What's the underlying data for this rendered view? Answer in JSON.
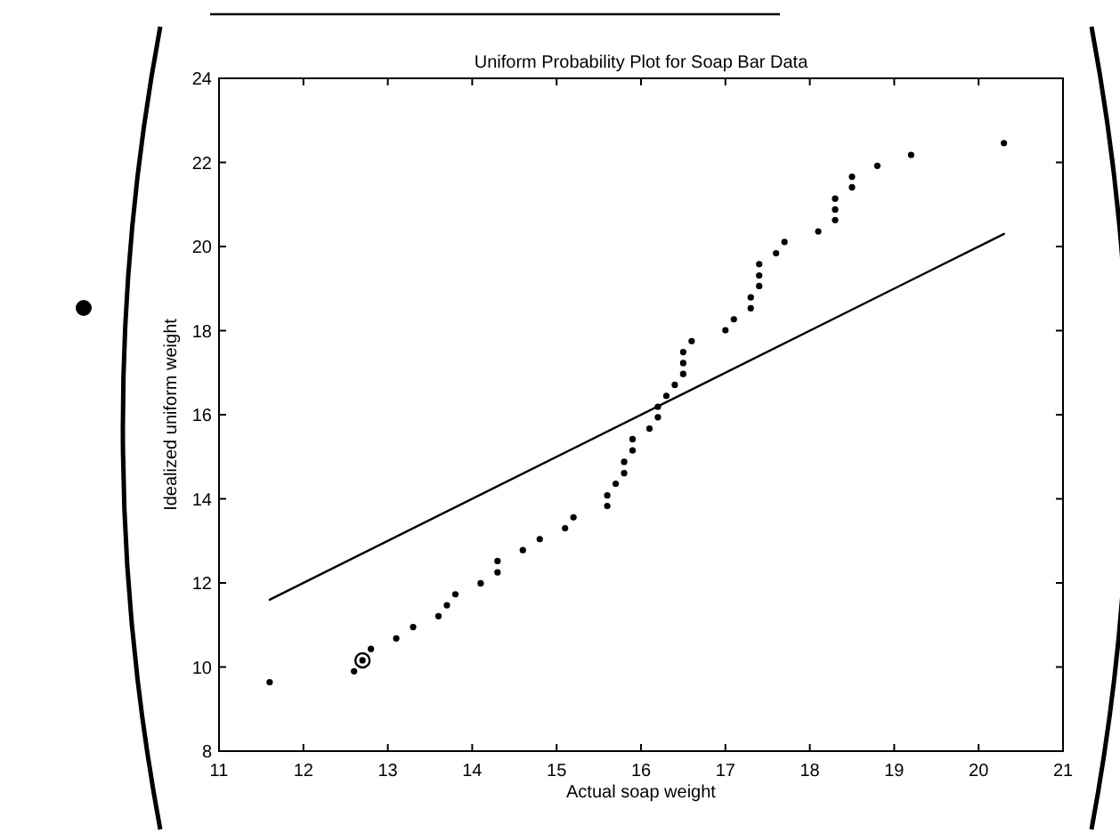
{
  "chart_data": {
    "type": "scatter",
    "title": "Uniform Probability Plot for Soap Bar Data",
    "xlabel": "Actual soap weight",
    "ylabel": "Idealized uniform weight",
    "xlim": [
      11,
      21
    ],
    "xticks": [
      11,
      12,
      13,
      14,
      15,
      16,
      17,
      18,
      19,
      20,
      21
    ],
    "ylim": [
      8,
      24
    ],
    "yticks": [
      8,
      10,
      12,
      14,
      16,
      18,
      20,
      22,
      24
    ],
    "series": [
      {
        "marker": "circle",
        "color": "#000000",
        "x": [
          11.6,
          12.6,
          12.7,
          12.8,
          13.1,
          13.3,
          13.6,
          13.7,
          13.8,
          14.1,
          14.3,
          14.3,
          14.6,
          14.8,
          15.1,
          15.2,
          15.6,
          15.6,
          15.7,
          15.8,
          15.8,
          15.9,
          15.9,
          16.1,
          16.2,
          16.2,
          16.3,
          16.4,
          16.5,
          16.5,
          16.5,
          16.6,
          17.0,
          17.1,
          17.3,
          17.3,
          17.4,
          17.4,
          17.4,
          17.6,
          17.7,
          18.1,
          18.3,
          18.3,
          18.3,
          18.5,
          18.5,
          18.8,
          19.2,
          20.3
        ],
        "values": [
          9.64,
          9.9,
          10.16,
          10.43,
          10.68,
          10.95,
          11.21,
          11.47,
          11.73,
          11.99,
          12.25,
          12.52,
          12.78,
          13.04,
          13.3,
          13.56,
          13.83,
          14.08,
          14.36,
          14.61,
          14.88,
          15.15,
          15.42,
          15.67,
          15.94,
          16.19,
          16.45,
          16.71,
          16.97,
          17.23,
          17.49,
          17.75,
          18.01,
          18.27,
          18.53,
          18.79,
          19.06,
          19.31,
          19.58,
          19.84,
          20.11,
          20.36,
          20.63,
          20.88,
          21.14,
          21.41,
          21.66,
          21.92,
          22.18,
          22.46
        ]
      },
      {
        "marker": "circle",
        "color": "#000000",
        "x": [
          12.7
        ],
        "values": [
          10.16
        ]
      },
      {
        "type": "line",
        "marker": "none",
        "line_style": "solid",
        "color": "#000000",
        "x": [
          11.6,
          20.3
        ],
        "values": [
          11.6,
          20.3
        ]
      }
    ]
  }
}
